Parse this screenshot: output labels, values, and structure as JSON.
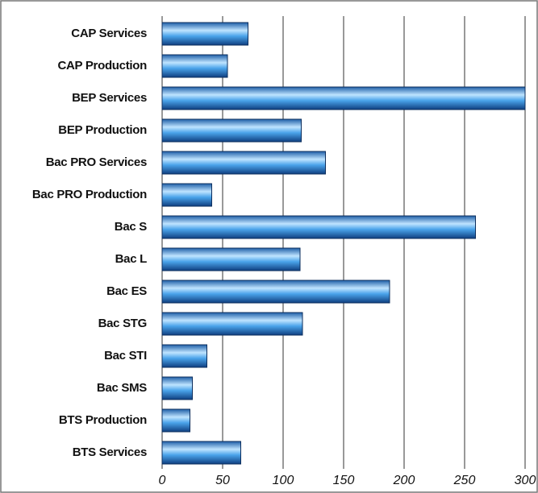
{
  "chart_data": {
    "type": "hbar",
    "categories": [
      "CAP Services",
      "CAP Production",
      "BEP Services",
      "BEP Production",
      "Bac PRO Services",
      "Bac PRO Production",
      "Bac S",
      "Bac L",
      "Bac ES",
      "Bac STG",
      "Bac STI",
      "Bac SMS",
      "BTS Production",
      "BTS Services"
    ],
    "values": [
      71,
      54,
      300,
      115,
      135,
      41,
      259,
      114,
      188,
      116,
      37,
      25,
      23,
      65
    ],
    "color": "#3a8fd8",
    "xlim": [
      0,
      300
    ],
    "xticks": [
      0,
      50,
      100,
      150,
      200,
      250,
      300
    ],
    "grid": true
  }
}
